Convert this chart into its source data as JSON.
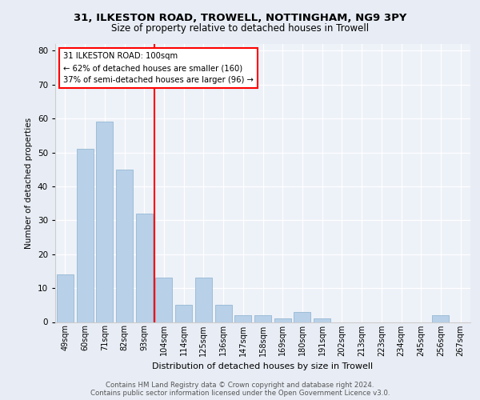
{
  "title1": "31, ILKESTON ROAD, TROWELL, NOTTINGHAM, NG9 3PY",
  "title2": "Size of property relative to detached houses in Trowell",
  "xlabel": "Distribution of detached houses by size in Trowell",
  "ylabel": "Number of detached properties",
  "categories": [
    "49sqm",
    "60sqm",
    "71sqm",
    "82sqm",
    "93sqm",
    "104sqm",
    "114sqm",
    "125sqm",
    "136sqm",
    "147sqm",
    "158sqm",
    "169sqm",
    "180sqm",
    "191sqm",
    "202sqm",
    "213sqm",
    "223sqm",
    "234sqm",
    "245sqm",
    "256sqm",
    "267sqm"
  ],
  "values": [
    14,
    51,
    59,
    45,
    32,
    13,
    5,
    13,
    5,
    2,
    2,
    1,
    3,
    1,
    0,
    0,
    0,
    0,
    0,
    2,
    0
  ],
  "bar_color": "#b8d0e8",
  "bar_edgecolor": "#8ab0ce",
  "vline_color": "red",
  "annotation_text": "31 ILKESTON ROAD: 100sqm\n← 62% of detached houses are smaller (160)\n37% of semi-detached houses are larger (96) →",
  "ylim": [
    0,
    82
  ],
  "yticks": [
    0,
    10,
    20,
    30,
    40,
    50,
    60,
    70,
    80
  ],
  "footer": "Contains HM Land Registry data © Crown copyright and database right 2024.\nContains public sector information licensed under the Open Government Licence v3.0.",
  "bg_color": "#e8edf5",
  "plot_bg_color": "#edf1f8"
}
